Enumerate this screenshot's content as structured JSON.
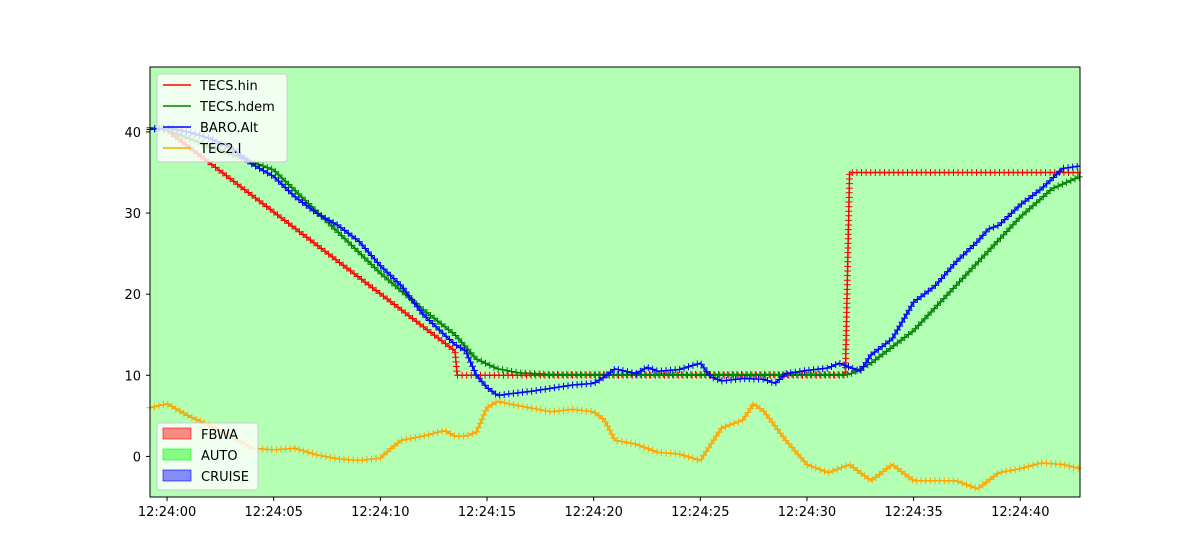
{
  "chart_data": {
    "type": "line",
    "xlim": [
      -0.8,
      42.8
    ],
    "ylim": [
      -5,
      48
    ],
    "x_ticks": [
      {
        "value": 0,
        "label": "12:24:00"
      },
      {
        "value": 5,
        "label": "12:24:05"
      },
      {
        "value": 10,
        "label": "12:24:10"
      },
      {
        "value": 15,
        "label": "12:24:15"
      },
      {
        "value": 20,
        "label": "12:24:20"
      },
      {
        "value": 25,
        "label": "12:24:25"
      },
      {
        "value": 30,
        "label": "12:24:30"
      },
      {
        "value": 35,
        "label": "12:24:35"
      },
      {
        "value": 40,
        "label": "12:24:40"
      }
    ],
    "y_ticks": [
      {
        "value": 0,
        "label": "0"
      },
      {
        "value": 10,
        "label": "10"
      },
      {
        "value": 20,
        "label": "20"
      },
      {
        "value": 30,
        "label": "30"
      },
      {
        "value": 40,
        "label": "40"
      }
    ],
    "background_color": "#b3ffb3",
    "grid": false,
    "series": [
      {
        "name": "TECS.hin",
        "color": "#ff0000",
        "points": [
          [
            -0.8,
            40.5
          ],
          [
            0,
            40.2
          ],
          [
            13.5,
            13.0
          ],
          [
            13.6,
            10.0
          ],
          [
            31.8,
            10.0
          ],
          [
            32.0,
            35.0
          ],
          [
            42.8,
            35.0
          ]
        ]
      },
      {
        "name": "TECS.hdem",
        "color": "#008000",
        "points": [
          [
            -0.8,
            40.5
          ],
          [
            0,
            40.2
          ],
          [
            5,
            35.3
          ],
          [
            10,
            22.6
          ],
          [
            12,
            18.1
          ],
          [
            13.5,
            15.0
          ],
          [
            14.5,
            12.0
          ],
          [
            15.5,
            10.8
          ],
          [
            16.5,
            10.3
          ],
          [
            18,
            10.1
          ],
          [
            32,
            10.1
          ],
          [
            33,
            11.5
          ],
          [
            34,
            13.5
          ],
          [
            35,
            15.5
          ],
          [
            40,
            29.5
          ],
          [
            41.5,
            33.0
          ],
          [
            42.8,
            34.5
          ]
        ]
      },
      {
        "name": "BARO.Alt",
        "color": "#0000ff",
        "points": [
          [
            -0.8,
            40.3
          ],
          [
            0,
            40.5
          ],
          [
            1,
            40.0
          ],
          [
            2,
            39.2
          ],
          [
            3,
            38.0
          ],
          [
            4,
            36.0
          ],
          [
            5,
            34.5
          ],
          [
            6,
            32.0
          ],
          [
            7,
            30.0
          ],
          [
            8,
            28.5
          ],
          [
            9,
            26.5
          ],
          [
            10,
            23.5
          ],
          [
            11,
            21.0
          ],
          [
            12,
            17.5
          ],
          [
            13,
            15.0
          ],
          [
            13.5,
            13.8
          ],
          [
            14,
            13.0
          ],
          [
            14.5,
            10.0
          ],
          [
            15,
            8.5
          ],
          [
            15.5,
            7.5
          ],
          [
            16,
            7.7
          ],
          [
            17,
            8.0
          ],
          [
            18,
            8.4
          ],
          [
            19,
            8.8
          ],
          [
            20,
            9.0
          ],
          [
            20.5,
            9.8
          ],
          [
            21,
            10.8
          ],
          [
            21.5,
            10.5
          ],
          [
            22,
            10.2
          ],
          [
            22.5,
            11.0
          ],
          [
            23,
            10.5
          ],
          [
            24,
            10.7
          ],
          [
            25,
            11.5
          ],
          [
            25.5,
            9.8
          ],
          [
            26,
            9.3
          ],
          [
            27,
            9.6
          ],
          [
            28,
            9.5
          ],
          [
            28.5,
            9.0
          ],
          [
            29,
            10.2
          ],
          [
            30,
            10.6
          ],
          [
            31,
            10.9
          ],
          [
            31.5,
            11.5
          ],
          [
            32,
            11.0
          ],
          [
            32.5,
            10.5
          ],
          [
            33,
            12.5
          ],
          [
            34,
            14.5
          ],
          [
            35,
            19.0
          ],
          [
            36,
            21.0
          ],
          [
            37,
            24.0
          ],
          [
            38,
            26.5
          ],
          [
            38.5,
            28.0
          ],
          [
            39,
            28.5
          ],
          [
            40,
            31.0
          ],
          [
            41,
            33.0
          ],
          [
            42,
            35.5
          ],
          [
            42.8,
            35.8
          ]
        ]
      },
      {
        "name": "TEC2.I",
        "color": "#ffa500",
        "points": [
          [
            -0.8,
            6.0
          ],
          [
            0,
            6.5
          ],
          [
            1,
            5.0
          ],
          [
            2,
            3.8
          ],
          [
            3,
            2.5
          ],
          [
            4,
            1.0
          ],
          [
            5,
            0.8
          ],
          [
            6,
            1.0
          ],
          [
            7,
            0.2
          ],
          [
            8,
            -0.3
          ],
          [
            9,
            -0.5
          ],
          [
            10,
            -0.2
          ],
          [
            10.5,
            1.0
          ],
          [
            11,
            2.0
          ],
          [
            12,
            2.5
          ],
          [
            13,
            3.2
          ],
          [
            13.5,
            2.5
          ],
          [
            14,
            2.5
          ],
          [
            14.5,
            3.0
          ],
          [
            15,
            6.0
          ],
          [
            15.5,
            6.8
          ],
          [
            16,
            6.5
          ],
          [
            17,
            6.0
          ],
          [
            18,
            5.5
          ],
          [
            19,
            5.8
          ],
          [
            20,
            5.5
          ],
          [
            20.5,
            4.5
          ],
          [
            21,
            2.0
          ],
          [
            22,
            1.5
          ],
          [
            23,
            0.5
          ],
          [
            24,
            0.3
          ],
          [
            25,
            -0.5
          ],
          [
            26,
            3.5
          ],
          [
            27,
            4.5
          ],
          [
            27.5,
            6.5
          ],
          [
            28,
            5.5
          ],
          [
            29,
            2.0
          ],
          [
            30,
            -1.0
          ],
          [
            31,
            -2.0
          ],
          [
            32,
            -1.0
          ],
          [
            33,
            -3.0
          ],
          [
            34,
            -1.0
          ],
          [
            35,
            -3.0
          ],
          [
            36,
            -3.0
          ],
          [
            37,
            -3.0
          ],
          [
            38,
            -4.0
          ],
          [
            39,
            -2.0
          ],
          [
            40,
            -1.5
          ],
          [
            41,
            -0.8
          ],
          [
            42,
            -1.0
          ],
          [
            42.8,
            -1.5
          ]
        ]
      }
    ],
    "mode_legend": [
      {
        "name": "FBWA",
        "color": "#ff0000"
      },
      {
        "name": "AUTO",
        "color": "#00ff00"
      },
      {
        "name": "CRUISE",
        "color": "#0000ff"
      }
    ]
  }
}
